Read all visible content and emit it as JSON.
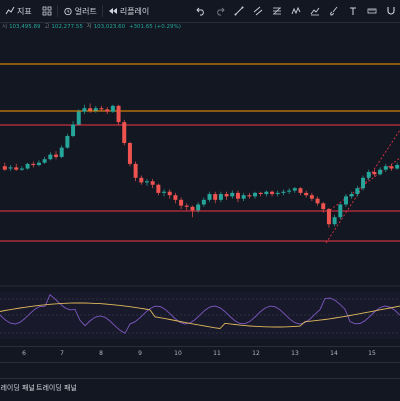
{
  "toolbar": {
    "indicators_label": "지표",
    "alerts_label": "얼러트",
    "replay_label": "리플레이"
  },
  "ohlc": {
    "open": "103,495.89",
    "high": "102,277.55",
    "low": "103,023.60",
    "change": "+301.65 (+0.29%)"
  },
  "dates": [
    "6",
    "7",
    "8",
    "9",
    "10",
    "11",
    "12",
    "13",
    "14",
    "15"
  ],
  "bottom": {
    "tab1": "트레이딩 패널",
    "tab2": "트레이딩 패널"
  },
  "colors": {
    "up": "#26a69a",
    "down": "#ef5350",
    "level": "#f23645",
    "level_orange": "#ff9800",
    "rsi": "#7e57c2",
    "ma": "#e0b85c"
  },
  "chart_data": {
    "type": "candlestick",
    "candles": [
      [
        150,
        147,
        153,
        146
      ],
      [
        147,
        148,
        150,
        145
      ],
      [
        148,
        146,
        150,
        144
      ],
      [
        146,
        145,
        148,
        143
      ],
      [
        145,
        143,
        146,
        141
      ],
      [
        143,
        144,
        146,
        140
      ],
      [
        144,
        141,
        145,
        139
      ],
      [
        141,
        140,
        142,
        136
      ],
      [
        140,
        136,
        141,
        134
      ],
      [
        136,
        132,
        137,
        130
      ],
      [
        132,
        131,
        134,
        128
      ],
      [
        131,
        128,
        132,
        125
      ],
      [
        128,
        120,
        129,
        117
      ],
      [
        120,
        112,
        121,
        109
      ],
      [
        112,
        104,
        113,
        102
      ],
      [
        104,
        100,
        106,
        98
      ],
      [
        100,
        102,
        104,
        97
      ],
      [
        102,
        100,
        105,
        98
      ],
      [
        100,
        103,
        106,
        99
      ],
      [
        103,
        104,
        107,
        100
      ],
      [
        104,
        103,
        106,
        98
      ],
      [
        103,
        118,
        104,
        116
      ],
      [
        118,
        130,
        120,
        127
      ],
      [
        130,
        148,
        132,
        145
      ],
      [
        148,
        160,
        150,
        157
      ],
      [
        160,
        170,
        162,
        167
      ],
      [
        170,
        176,
        172,
        174
      ],
      [
        176,
        180,
        178,
        177
      ],
      [
        180,
        178,
        184,
        176
      ],
      [
        178,
        182,
        183,
        176
      ],
      [
        182,
        186,
        188,
        180
      ],
      [
        186,
        183,
        190,
        179
      ],
      [
        183,
        192,
        194,
        181
      ],
      [
        192,
        195,
        197,
        190
      ],
      [
        195,
        200,
        203,
        193
      ],
      [
        200,
        205,
        207,
        198
      ],
      [
        205,
        210,
        212,
        203
      ],
      [
        210,
        212,
        215,
        208
      ],
      [
        212,
        208,
        214,
        205
      ],
      [
        208,
        214,
        215,
        206
      ],
      [
        214,
        211,
        216,
        209
      ],
      [
        211,
        190,
        212,
        188
      ],
      [
        190,
        185,
        192,
        183
      ],
      [
        185,
        180,
        187,
        178
      ],
      [
        180,
        182,
        184,
        176
      ],
      [
        182,
        179,
        184,
        177
      ],
      [
        179,
        185,
        187,
        177
      ],
      [
        185,
        188,
        190,
        183
      ],
      [
        188,
        186,
        190,
        184
      ],
      [
        186,
        193,
        195,
        185
      ],
      [
        193,
        200,
        202,
        191
      ],
      [
        200,
        198,
        204,
        196
      ],
      [
        198,
        190,
        200,
        188
      ],
      [
        190,
        194,
        196,
        189
      ],
      [
        194,
        192,
        196,
        190
      ],
      [
        192,
        195,
        197,
        190
      ],
      [
        195,
        198,
        200,
        193
      ],
      [
        198,
        196,
        200,
        194
      ],
      [
        196,
        200,
        202,
        195
      ],
      [
        200,
        199,
        203,
        197
      ],
      [
        199,
        201,
        203,
        198
      ],
      [
        201,
        195,
        202,
        193
      ],
      [
        195,
        188,
        196,
        186
      ],
      [
        188,
        170,
        189,
        168
      ],
      [
        170,
        164,
        171,
        160
      ],
      [
        164,
        172,
        173,
        162
      ],
      [
        172,
        183,
        184,
        170
      ],
      [
        183,
        190,
        192,
        181
      ],
      [
        190,
        186,
        192,
        184
      ],
      [
        186,
        195,
        197,
        185
      ],
      [
        195,
        200,
        201,
        194
      ],
      [
        200,
        206,
        208,
        199
      ],
      [
        206,
        203,
        208,
        201
      ],
      [
        203,
        201,
        206,
        199
      ]
    ],
    "price_levels": [
      {
        "label": "level-1",
        "color": "#ff9800"
      },
      {
        "label": "level-2",
        "color": "#ff9800"
      },
      {
        "label": "level-3",
        "color": "#f23645"
      },
      {
        "label": "level-4",
        "color": "#f23645"
      },
      {
        "label": "level-5",
        "color": "#f23645"
      }
    ]
  }
}
